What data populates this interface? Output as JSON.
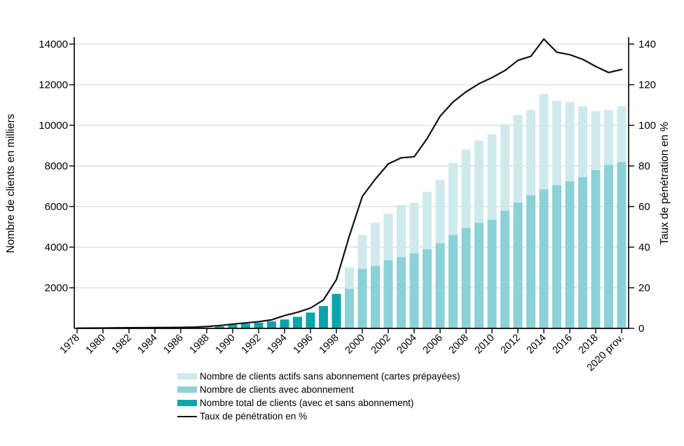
{
  "chart_data": {
    "type": "bar",
    "subtype": "stacked-bar-with-line-combo",
    "title": "",
    "years": [
      "1978",
      "1979",
      "1980",
      "1981",
      "1982",
      "1983",
      "1984",
      "1985",
      "1986",
      "1987",
      "1988",
      "1989",
      "1990",
      "1991",
      "1992",
      "1993",
      "1994",
      "1995",
      "1996",
      "1997",
      "1998",
      "1999",
      "2000",
      "2001",
      "2002",
      "2003",
      "2004",
      "2005",
      "2006",
      "2007",
      "2008",
      "2009",
      "2010",
      "2011",
      "2012",
      "2013",
      "2014",
      "2015",
      "2016",
      "2017",
      "2018",
      "2019",
      "2020 prov."
    ],
    "x_tick_indices": [
      0,
      2,
      4,
      6,
      8,
      10,
      12,
      14,
      16,
      18,
      20,
      22,
      24,
      26,
      28,
      30,
      32,
      34,
      36,
      38,
      40,
      42
    ],
    "left_axis": {
      "label": "Nombre de clients en milliers",
      "ticks": [
        2000,
        4000,
        6000,
        8000,
        10000,
        12000,
        14000
      ],
      "range": [
        0,
        14000
      ]
    },
    "right_axis": {
      "label": "Taux de pénétration en %",
      "ticks": [
        0,
        20,
        40,
        60,
        80,
        100,
        120,
        140
      ],
      "range": [
        0,
        140
      ]
    },
    "grid": "horizontal-only",
    "legend_position": "bottom",
    "series": [
      {
        "name": "Nombre de clients actifs sans abonnement (cartes prépayées)",
        "color": "#cfeaed",
        "role": "stack-top",
        "values": [
          null,
          null,
          null,
          null,
          null,
          null,
          null,
          null,
          null,
          null,
          null,
          null,
          null,
          null,
          null,
          null,
          null,
          null,
          null,
          null,
          null,
          1050,
          1670,
          2120,
          2290,
          2560,
          2490,
          2830,
          3100,
          3550,
          3850,
          4050,
          4200,
          4250,
          4300,
          4200,
          4700,
          4150,
          3900,
          3500,
          2900,
          2700,
          2750
        ]
      },
      {
        "name": "Nombre de clients avec abonnement",
        "color": "#8bd1d8",
        "role": "stack-bottom",
        "values": [
          null,
          null,
          null,
          null,
          null,
          null,
          null,
          null,
          null,
          null,
          null,
          null,
          null,
          null,
          null,
          null,
          null,
          null,
          null,
          null,
          null,
          1950,
          2930,
          3080,
          3360,
          3510,
          3700,
          3900,
          4200,
          4600,
          4950,
          5200,
          5350,
          5800,
          6200,
          6550,
          6850,
          7050,
          7250,
          7450,
          7800,
          8050,
          8200
        ]
      },
      {
        "name": "Nombre total de clients (avec et sans abonnement)",
        "color": "#07a6ae",
        "role": "single-bar",
        "values": [
          null,
          null,
          null,
          null,
          null,
          null,
          null,
          null,
          null,
          null,
          null,
          100,
          180,
          230,
          280,
          350,
          440,
          570,
          780,
          1100,
          1700,
          null,
          null,
          null,
          null,
          null,
          null,
          null,
          null,
          null,
          null,
          null,
          null,
          null,
          null,
          null,
          null,
          null,
          null,
          null,
          null,
          null,
          null
        ]
      }
    ],
    "line": {
      "name": "Taux de pénétration en %",
      "color": "#111111",
      "axis": "right",
      "values": [
        0.1,
        0.15,
        0.2,
        0.25,
        0.3,
        0.35,
        0.4,
        0.45,
        0.5,
        0.6,
        0.9,
        1.4,
        2.1,
        2.7,
        3.3,
        4.2,
        6.3,
        7.9,
        10,
        14,
        24,
        45.5,
        65,
        73.5,
        81,
        84,
        84.5,
        93.5,
        104.5,
        111.5,
        116.5,
        120.5,
        123.5,
        127,
        132,
        134,
        142.5,
        136,
        134.8,
        132.5,
        129,
        126,
        127.5
      ]
    },
    "colors": {
      "grid": "#d9d9d9",
      "axis": "#000000",
      "text": "#000000"
    }
  }
}
